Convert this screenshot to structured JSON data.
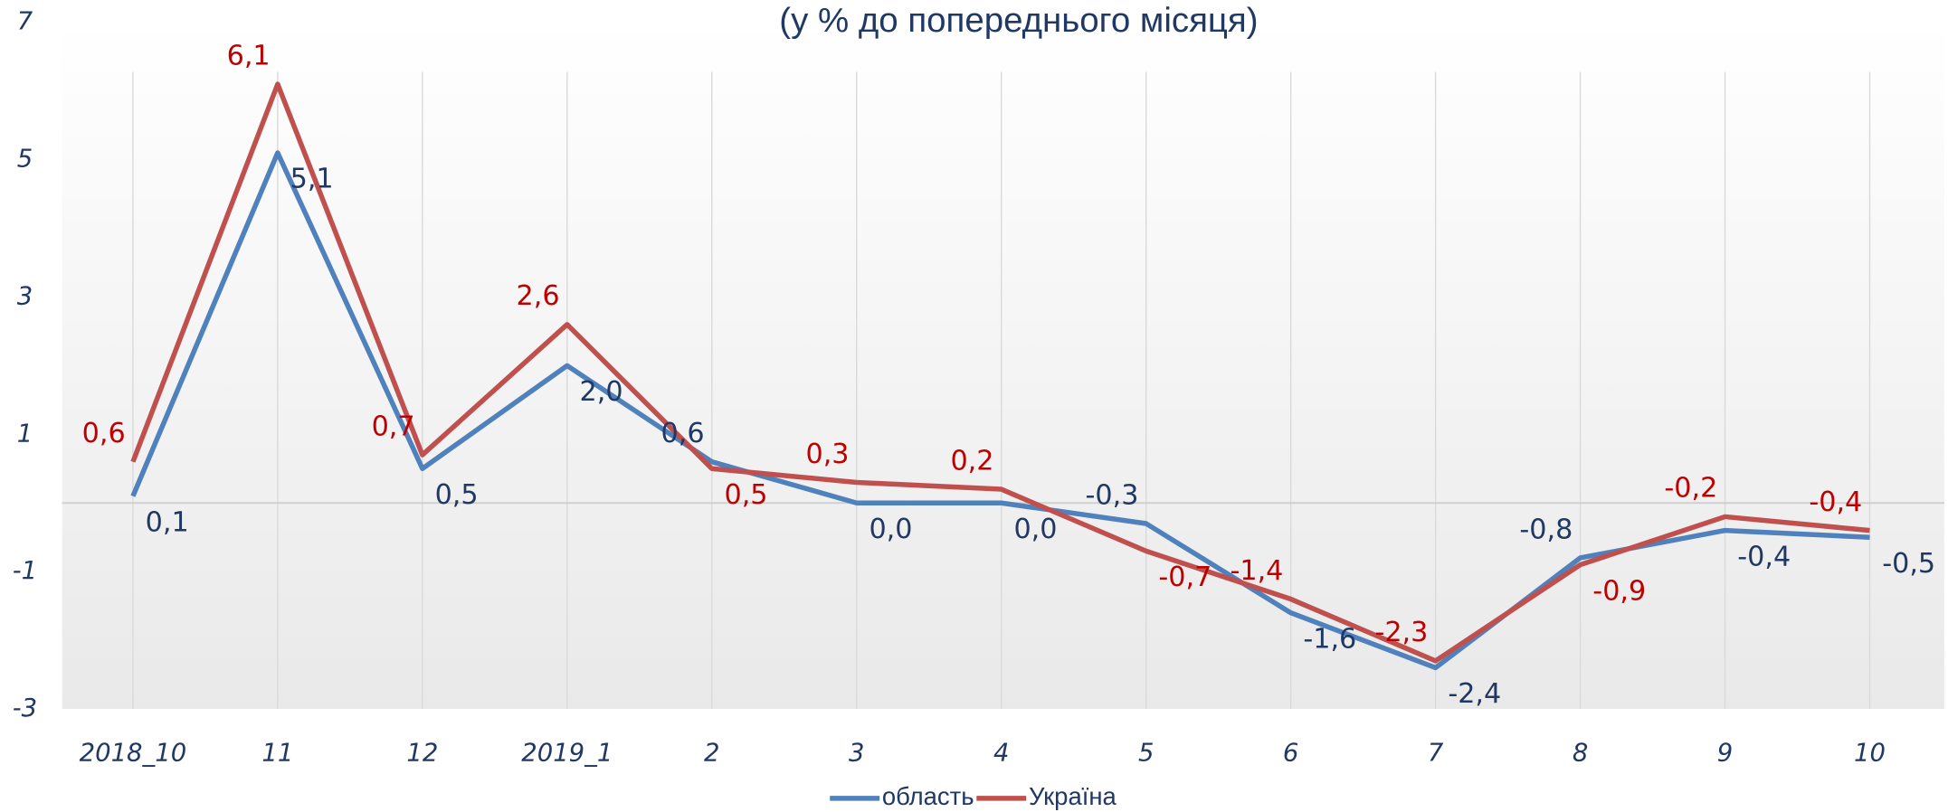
{
  "chart_data": {
    "type": "line",
    "title": "(у % до попереднього місяця)",
    "categories": [
      "2018_10",
      "11",
      "12",
      "2019_1",
      "2",
      "3",
      "4",
      "5",
      "6",
      "7",
      "8",
      "9",
      "10"
    ],
    "series": [
      {
        "name": "область",
        "color": "#4f81bd",
        "label_color": "#1f3864",
        "values": [
          0.1,
          5.1,
          0.5,
          2.0,
          0.6,
          0.0,
          0.0,
          -0.3,
          -1.6,
          -2.4,
          -0.8,
          -0.4,
          -0.5
        ],
        "value_labels": [
          "0,1",
          "5,1",
          "0,5",
          "2,0",
          "0,6",
          "0,0",
          "0,0",
          "-0,3",
          "-1,6",
          "-2,4",
          "-0,8",
          "-0,4",
          "-0,5"
        ]
      },
      {
        "name": "Україна",
        "color": "#c0504d",
        "label_color": "#c00000",
        "values": [
          0.6,
          6.1,
          0.7,
          2.6,
          0.5,
          0.3,
          0.2,
          -0.7,
          -1.4,
          -2.3,
          -0.9,
          -0.2,
          -0.4
        ],
        "value_labels": [
          "0,6",
          "6,1",
          "0,7",
          "2,6",
          "0,5",
          "0,3",
          "0,2",
          "-0,7",
          "-1,4",
          "-2,3",
          "-0,9",
          "-0,2",
          "-0,4"
        ]
      }
    ],
    "ylim": [
      -3,
      7
    ],
    "yticks": [
      -3,
      -1,
      1,
      3,
      5,
      7
    ],
    "grid": true,
    "legend": "bottom"
  }
}
